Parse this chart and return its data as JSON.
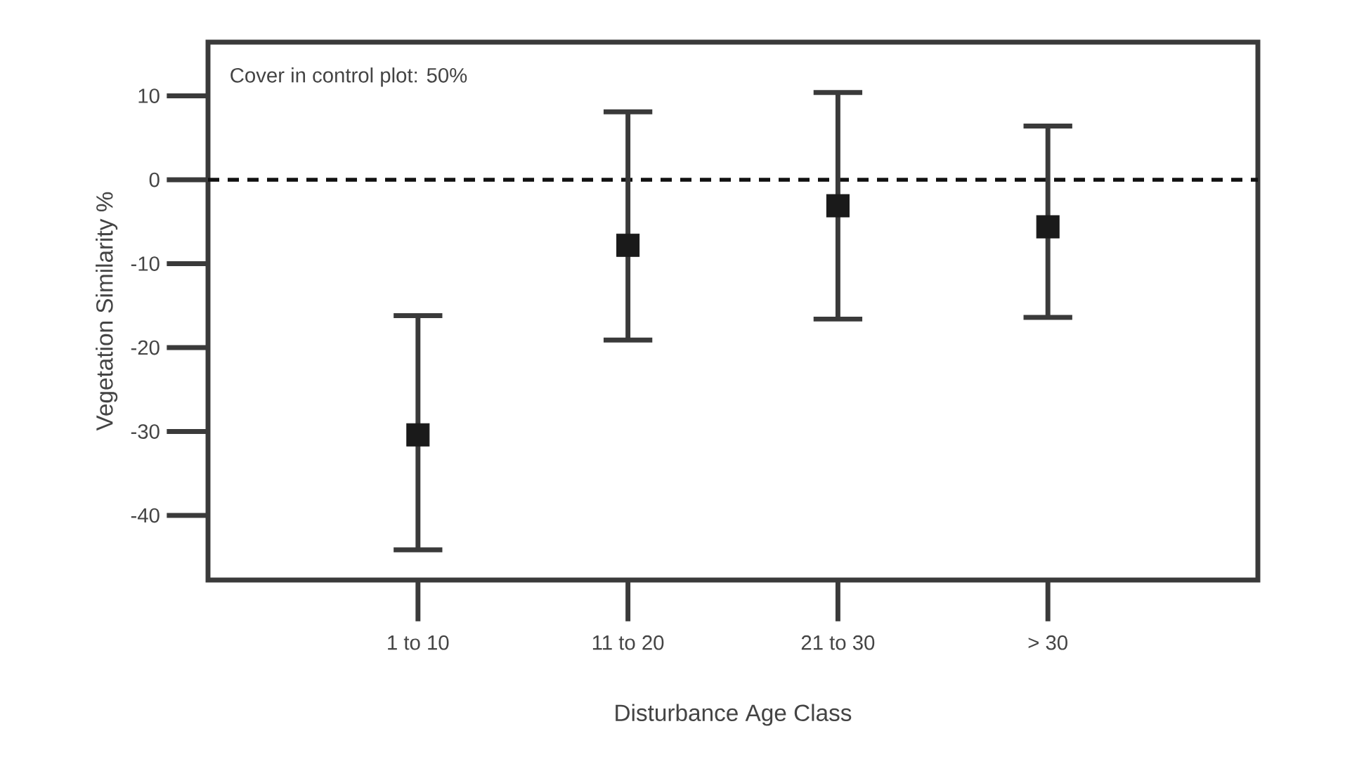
{
  "chart_data": {
    "type": "scatter",
    "xlabel": "Disturbance Age Class",
    "ylabel": "Vegetation Similarity %",
    "categories": [
      "1 to 10",
      "11 to 20",
      "21 to 30",
      "> 30"
    ],
    "values": [
      -30.4,
      -7.8,
      -3.1,
      -5.6
    ],
    "errors": [
      [
        -44.1,
        -16.2
      ],
      [
        -19.1,
        8.1
      ],
      [
        -16.6,
        10.4
      ],
      [
        -16.4,
        6.4
      ]
    ],
    "color": "#1a1a1a",
    "marker": "square",
    "ylim": [
      -47.7,
      16.4
    ],
    "yticks": [
      -40,
      -30,
      -20,
      -10,
      0,
      10
    ],
    "ref_lines": [
      {
        "axis": "y",
        "value": 0,
        "color": "#111111",
        "line_style": "dashed"
      }
    ],
    "annotations": [
      "Cover in control plot: 50%"
    ],
    "grid": false
  }
}
